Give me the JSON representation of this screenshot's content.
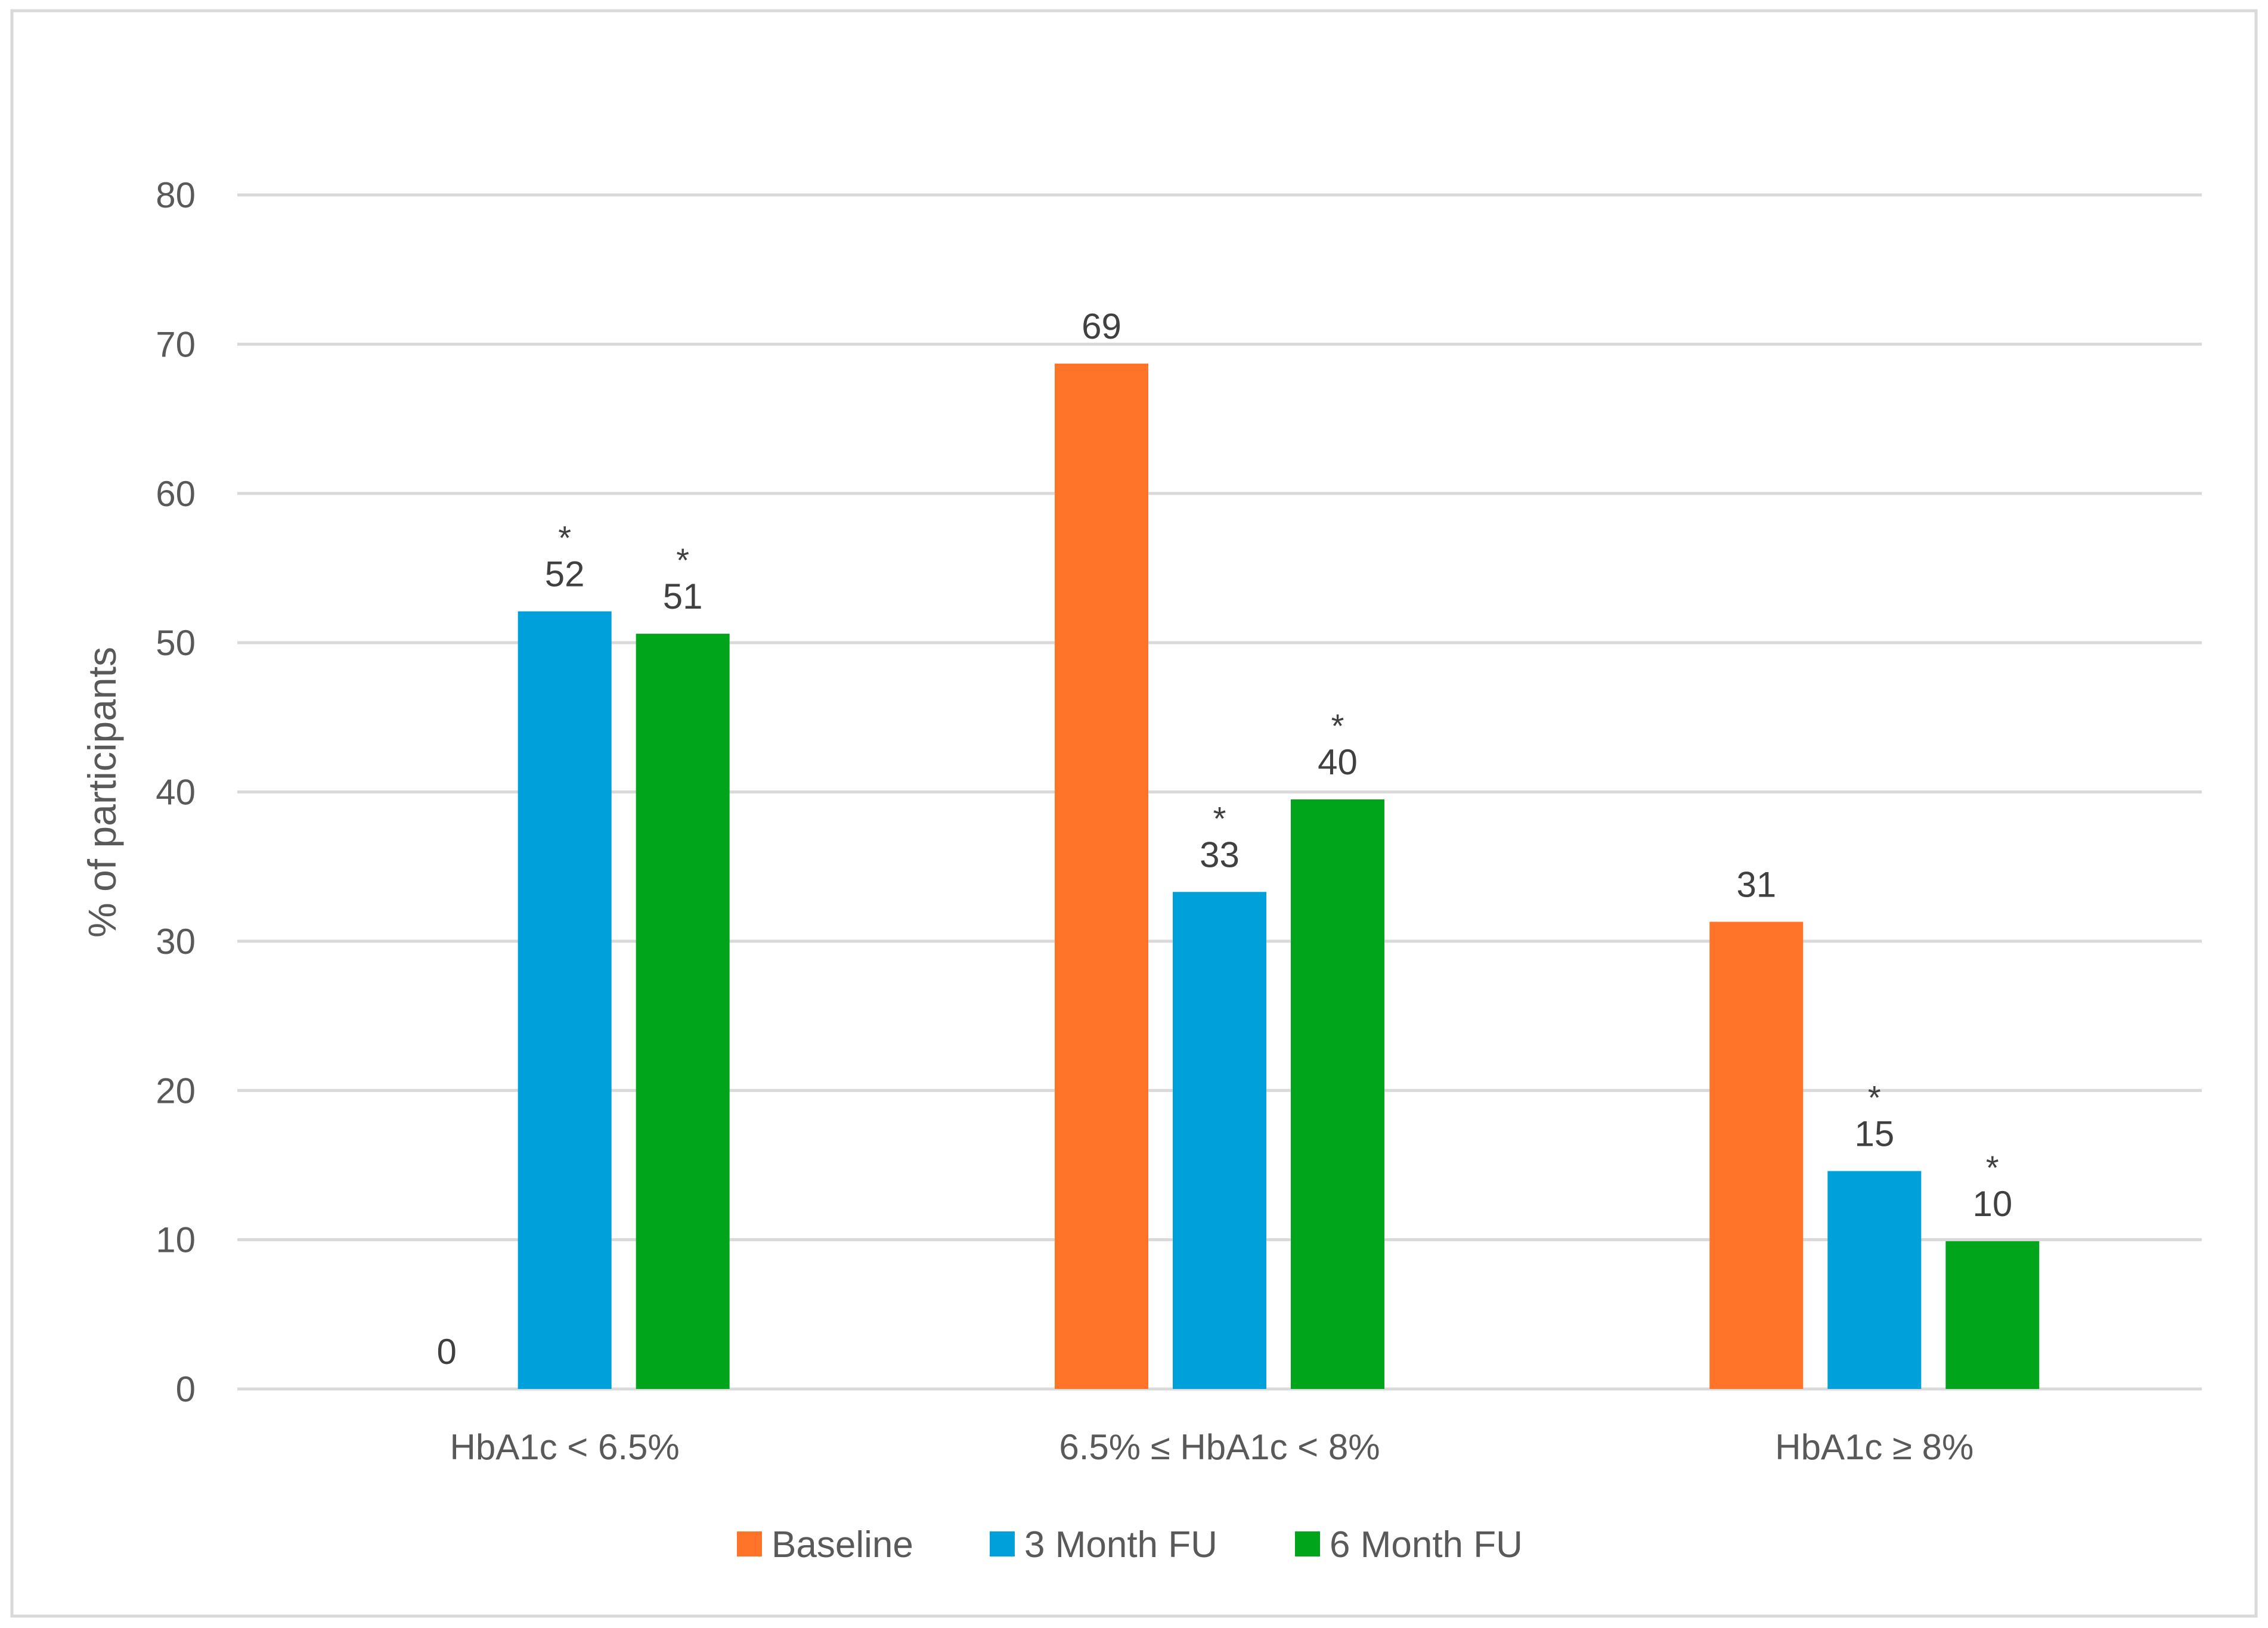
{
  "chart_data": {
    "type": "bar",
    "title": "",
    "xlabel": "",
    "ylabel": "% of participants",
    "ylim": [
      0,
      80
    ],
    "yticks": [
      0,
      10,
      20,
      30,
      40,
      50,
      60,
      70,
      80
    ],
    "grid": true,
    "legend_position": "bottom",
    "significance_marker": "*",
    "categories": [
      "HbA1c < 6.5%",
      "6.5% ≤ HbA1c < 8%",
      "HbA1c ≥ 8%"
    ],
    "series": [
      {
        "name": "Baseline",
        "color": "#FF7428",
        "values": [
          0,
          68.7,
          31.3
        ],
        "labels": [
          "0",
          "69",
          "31"
        ],
        "significant": [
          false,
          false,
          false
        ]
      },
      {
        "name": "3 Month FU",
        "color": "#00A0DA",
        "values": [
          52.1,
          33.3,
          14.6
        ],
        "labels": [
          "52",
          "33",
          "15"
        ],
        "significant": [
          true,
          true,
          true
        ]
      },
      {
        "name": "6 Month FU",
        "color": "#00A51B",
        "values": [
          50.6,
          39.5,
          9.9
        ],
        "labels": [
          "51",
          "40",
          "10"
        ],
        "significant": [
          true,
          true,
          true
        ]
      }
    ]
  }
}
